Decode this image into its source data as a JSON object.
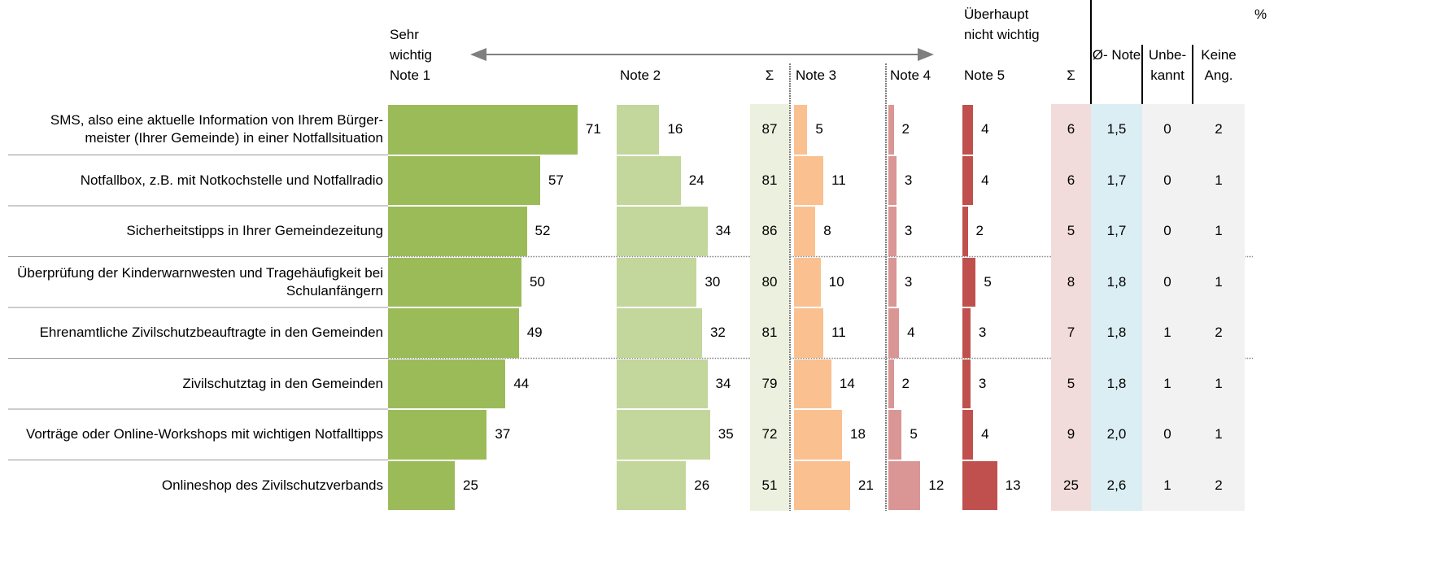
{
  "chart_data": {
    "type": "bar",
    "orientation": "horizontal",
    "unit_label": "%",
    "left_label": "Sehr wichtig",
    "right_label": "Überhaupt nicht wichtig",
    "categories": [
      "SMS, also eine aktuelle Information von Ihrem Bürger- meister (Ihrer Gemeinde) in einer Notfallsituation",
      "Notfallbox, z.B. mit Notkochstelle und Notfallradio",
      "Sicherheitstipps in Ihrer Gemeindezeitung",
      "Überprüfung der Kinderwarnwesten und Tragehäufigkeit bei Schulanfängern",
      "Ehrenamtliche Zivilschutzbeauftragte in den Gemeinden",
      "Zivilschutztag in den Gemeinden",
      "Vorträge oder Online-Workshops mit wichtigen Notfalltipps",
      "Onlineshop des Zivilschutzverbands"
    ],
    "xlim": [
      0,
      100
    ],
    "series": [
      {
        "name": "Note 1",
        "color": "#9bbb59",
        "values": [
          71,
          57,
          52,
          50,
          49,
          44,
          37,
          25
        ]
      },
      {
        "name": "Note 2",
        "color": "#c3d69b",
        "values": [
          16,
          24,
          34,
          30,
          32,
          34,
          35,
          26
        ]
      },
      {
        "name": "Note 3",
        "color": "#fac090",
        "values": [
          5,
          11,
          8,
          10,
          11,
          14,
          18,
          21
        ]
      },
      {
        "name": "Note 4",
        "color": "#d99694",
        "values": [
          2,
          3,
          3,
          3,
          4,
          2,
          5,
          12
        ]
      },
      {
        "name": "Note 5",
        "color": "#c0504d",
        "values": [
          4,
          4,
          2,
          5,
          3,
          3,
          4,
          13
        ]
      }
    ],
    "columns": [
      {
        "name": "Σ",
        "background": "#ebf1de",
        "values": [
          87,
          81,
          86,
          80,
          81,
          79,
          72,
          51
        ]
      },
      {
        "name": "Σ",
        "background": "#f2dcdb",
        "values": [
          6,
          6,
          5,
          8,
          7,
          5,
          9,
          25
        ]
      },
      {
        "name": "Ø- Note",
        "background": "#dbeef3",
        "values": [
          1.5,
          1.7,
          1.7,
          1.8,
          1.8,
          1.8,
          2.0,
          2.6
        ],
        "value_labels": [
          "1,5",
          "1,7",
          "1,7",
          "1,8",
          "1,8",
          "1,8",
          "2,0",
          "2,6"
        ]
      },
      {
        "name": "Unbe- kannt",
        "background": "#f2f2f2",
        "values": [
          0,
          0,
          0,
          0,
          1,
          1,
          0,
          1
        ]
      },
      {
        "name": "Keine Ang.",
        "background": "#f2f2f2",
        "values": [
          2,
          1,
          1,
          1,
          2,
          1,
          1,
          2
        ]
      }
    ]
  }
}
